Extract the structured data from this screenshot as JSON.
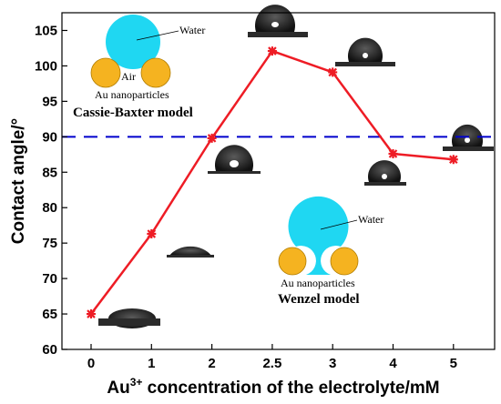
{
  "chart_data": {
    "type": "line",
    "x": [
      "0",
      "1",
      "2",
      "2.5",
      "3",
      "4",
      "5"
    ],
    "series": [
      {
        "values": [
          65.0,
          76.3,
          89.8,
          102.1,
          99.1,
          87.6,
          86.8
        ],
        "color": "#ee1c25"
      }
    ],
    "ylim": [
      60,
      107.5
    ],
    "yticks": [
      60,
      65,
      70,
      75,
      80,
      85,
      90,
      95,
      100,
      105
    ],
    "reference_line": {
      "y": 90,
      "color": "#0000cc",
      "style": "dashed"
    },
    "ylabel": "Contact angle/°",
    "xlabel_prefix": "Au",
    "xlabel_sup": "3+",
    "xlabel_suffix": " concentration of the electrolyte/mM",
    "grid": false
  },
  "insets": {
    "cassie": {
      "water_label": "Water",
      "air_label": "Air",
      "np_label": "Au nanoparticles",
      "model_label": "Cassie-Baxter model"
    },
    "wenzel": {
      "water_label": "Water",
      "np_label": "Au nanoparticles",
      "model_label": "Wenzel model"
    }
  },
  "colors": {
    "water": "#1fd7f2",
    "nanoparticle": "#f5b320",
    "droplet": "#222222"
  }
}
